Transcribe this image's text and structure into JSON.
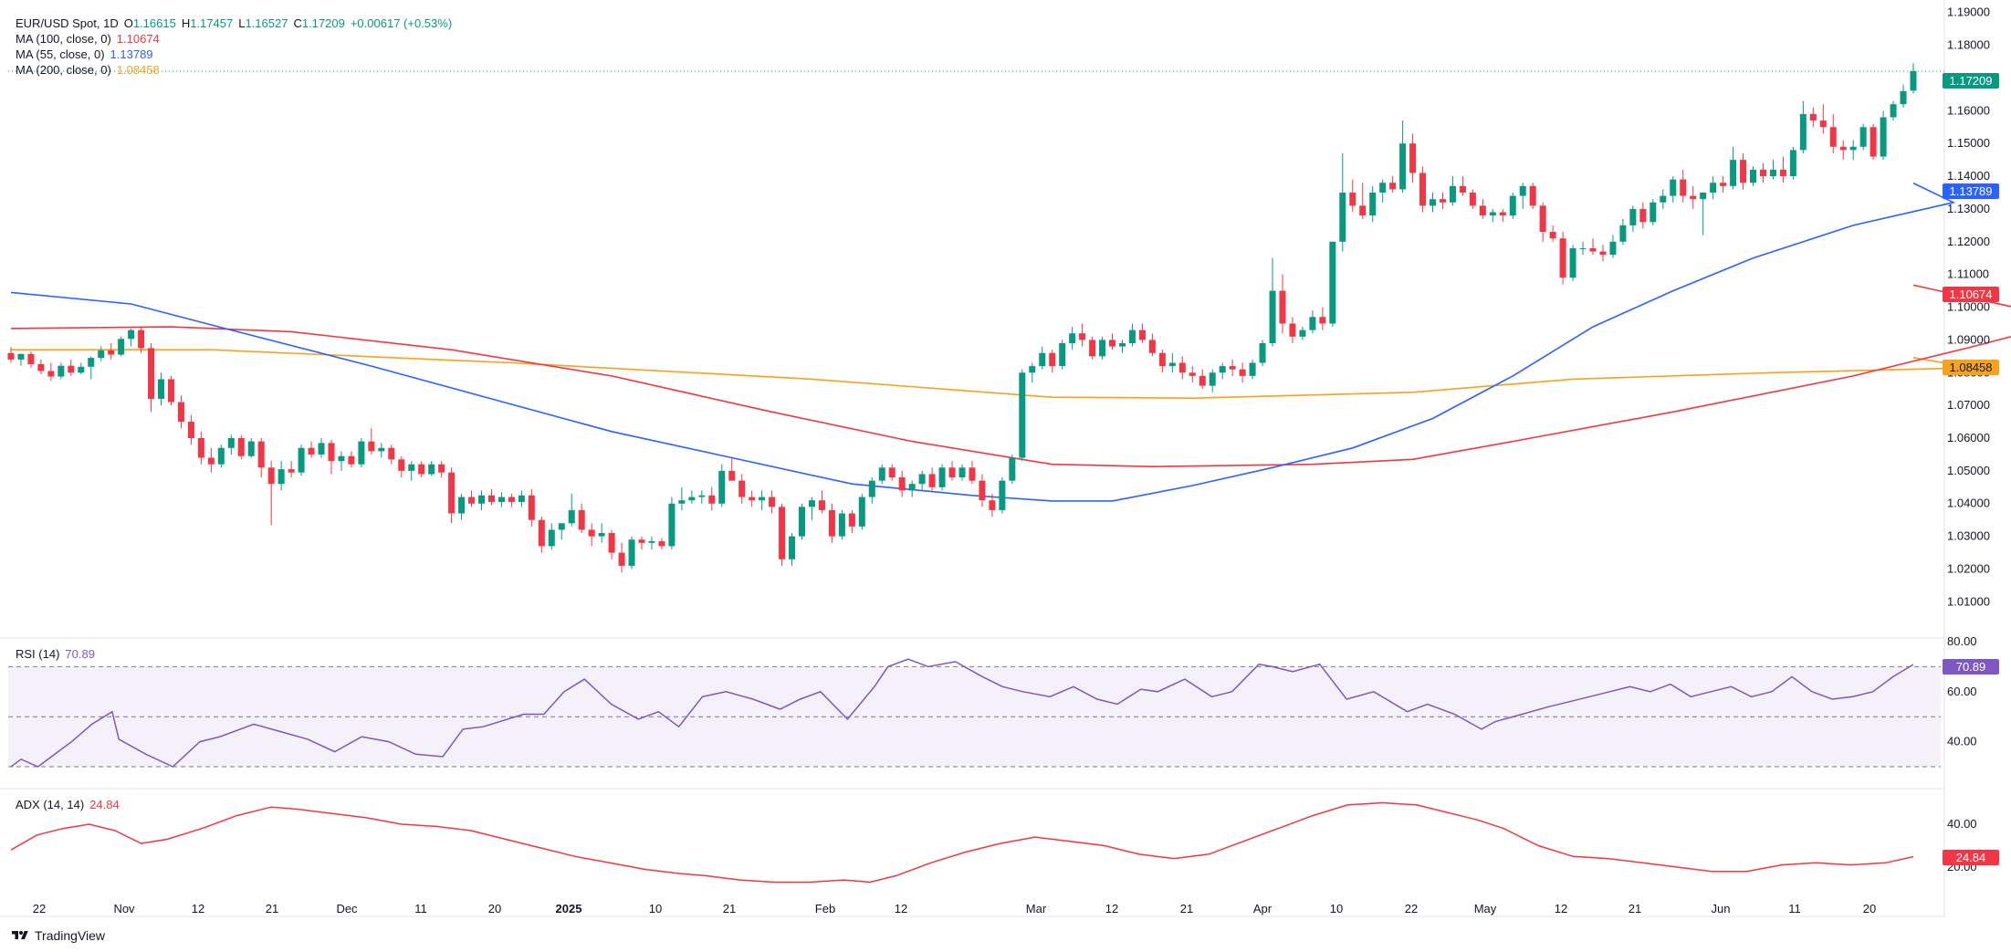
{
  "legend": {
    "symbol": "EUR/USD Spot, 1D",
    "o_label": "O",
    "o": "1.16615",
    "h_label": "H",
    "h": "1.17457",
    "l_label": "L",
    "l": "1.16527",
    "c_label": "C",
    "c": "1.17209",
    "change": "+0.00617 (+0.53%)",
    "ma100_label": "MA (100, close, 0)",
    "ma100": "1.10674",
    "ma55_label": "MA (55, close, 0)",
    "ma55": "1.13789",
    "ma200_label": "MA (200, close, 0)",
    "ma200": "1.08458",
    "rsi_label": "RSI (14)",
    "rsi": "70.89",
    "adx_label": "ADX (14, 14)",
    "adx": "24.84"
  },
  "tags": {
    "price": "1.17209",
    "ma55": "1.13789",
    "ma100": "1.10674",
    "ma200": "1.08458",
    "rsi": "70.89",
    "adx": "24.84"
  },
  "colors": {
    "up": "#089981",
    "down": "#f23645",
    "ma55": "#2962ff",
    "ma100": "#f23645",
    "ma200": "#f7a21b",
    "rsi": "#7e57c2",
    "adx": "#f23645",
    "price_tag": "#089981"
  },
  "footer": {
    "brand": "TradingView"
  },
  "chart_data": {
    "type": "candlestick",
    "title": "EUR/USD Spot, 1D",
    "x_tick_labels": [
      "22",
      "Nov",
      "12",
      "21",
      "Dec",
      "11",
      "20",
      "2025",
      "10",
      "21",
      "Feb",
      "12",
      "Mar",
      "12",
      "21",
      "Apr",
      "10",
      "22",
      "May",
      "12",
      "21",
      "Jun",
      "11",
      "20"
    ],
    "price_axis": {
      "ticks": [
        "1.19000",
        "1.18000",
        "1.17000",
        "1.16000",
        "1.15000",
        "1.14000",
        "1.13000",
        "1.12000",
        "1.11000",
        "1.10000",
        "1.09000",
        "1.08000",
        "1.07000",
        "1.06000",
        "1.05000",
        "1.04000",
        "1.03000",
        "1.02000",
        "1.01000"
      ],
      "range": [
        0.9995,
        1.1916
      ]
    },
    "rsi_axis": {
      "ticks": [
        "80.00",
        "60.00",
        "40.00"
      ],
      "bands": [
        70,
        50,
        30
      ]
    },
    "adx_axis": {
      "ticks": [
        "40.00",
        "20.00"
      ]
    },
    "candles_ohlc": [
      [
        1.086,
        1.0878,
        1.083,
        1.084
      ],
      [
        1.084,
        1.0858,
        1.0821,
        1.0857
      ],
      [
        1.0857,
        1.0865,
        1.0815,
        1.0826
      ],
      [
        1.0826,
        1.084,
        1.0795,
        1.0805
      ],
      [
        1.0805,
        1.083,
        1.0775,
        1.0788
      ],
      [
        1.0788,
        1.083,
        1.078,
        1.0821
      ],
      [
        1.0821,
        1.084,
        1.079,
        1.08
      ],
      [
        1.08,
        1.083,
        1.0795,
        1.0818
      ],
      [
        1.0818,
        1.085,
        1.078,
        1.0845
      ],
      [
        1.0845,
        1.088,
        1.0835,
        1.0868
      ],
      [
        1.0868,
        1.089,
        1.084,
        1.0855
      ],
      [
        1.0855,
        1.091,
        1.085,
        1.0903
      ],
      [
        1.0903,
        1.0935,
        1.088,
        1.093
      ],
      [
        1.093,
        1.0937,
        1.086,
        1.0875
      ],
      [
        1.0875,
        1.089,
        1.068,
        1.072
      ],
      [
        1.072,
        1.08,
        1.07,
        1.078
      ],
      [
        1.078,
        1.079,
        1.07,
        1.071
      ],
      [
        1.071,
        1.073,
        1.063,
        1.065
      ],
      [
        1.065,
        1.067,
        1.058,
        1.06
      ],
      [
        1.06,
        1.062,
        1.052,
        1.054
      ],
      [
        1.054,
        1.057,
        1.0495,
        1.052
      ],
      [
        1.052,
        1.058,
        1.051,
        1.057
      ],
      [
        1.057,
        1.061,
        1.055,
        1.06
      ],
      [
        1.06,
        1.061,
        1.0535,
        1.0545
      ],
      [
        1.0545,
        1.06,
        1.054,
        1.059
      ],
      [
        1.059,
        1.06,
        1.048,
        1.051
      ],
      [
        1.051,
        1.053,
        1.0335,
        1.046
      ],
      [
        1.046,
        1.053,
        1.044,
        1.0505
      ],
      [
        1.0505,
        1.053,
        1.048,
        1.0495
      ],
      [
        1.0495,
        1.058,
        1.0485,
        1.057
      ],
      [
        1.057,
        1.059,
        1.054,
        1.055
      ],
      [
        1.055,
        1.06,
        1.054,
        1.0585
      ],
      [
        1.0585,
        1.0595,
        1.049,
        1.053
      ],
      [
        1.053,
        1.056,
        1.05,
        1.0545
      ],
      [
        1.0545,
        1.056,
        1.051,
        1.052
      ],
      [
        1.052,
        1.06,
        1.051,
        1.059
      ],
      [
        1.059,
        1.063,
        1.055,
        1.056
      ],
      [
        1.056,
        1.0585,
        1.054,
        1.057
      ],
      [
        1.057,
        1.058,
        1.052,
        1.0535
      ],
      [
        1.0535,
        1.0545,
        1.048,
        1.05
      ],
      [
        1.05,
        1.053,
        1.047,
        1.052
      ],
      [
        1.052,
        1.053,
        1.048,
        1.049
      ],
      [
        1.049,
        1.053,
        1.0485,
        1.052
      ],
      [
        1.052,
        1.053,
        1.048,
        1.0495
      ],
      [
        1.0495,
        1.051,
        1.034,
        1.037
      ],
      [
        1.037,
        1.043,
        1.035,
        1.042
      ],
      [
        1.042,
        1.044,
        1.039,
        1.04
      ],
      [
        1.04,
        1.044,
        1.038,
        1.0425
      ],
      [
        1.0425,
        1.0445,
        1.0395,
        1.0405
      ],
      [
        1.0405,
        1.0435,
        1.039,
        1.042
      ],
      [
        1.042,
        1.043,
        1.039,
        1.0405
      ],
      [
        1.0405,
        1.044,
        1.039,
        1.0425
      ],
      [
        1.0425,
        1.0445,
        1.033,
        1.035
      ],
      [
        1.035,
        1.036,
        1.025,
        1.027
      ],
      [
        1.027,
        1.034,
        1.026,
        1.032
      ],
      [
        1.032,
        1.034,
        1.029,
        1.034
      ],
      [
        1.034,
        1.043,
        1.033,
        1.038
      ],
      [
        1.038,
        1.04,
        1.031,
        1.032
      ],
      [
        1.032,
        1.034,
        1.027,
        1.03
      ],
      [
        1.03,
        1.034,
        1.028,
        1.031
      ],
      [
        1.031,
        1.032,
        1.023,
        1.025
      ],
      [
        1.025,
        1.028,
        1.019,
        1.021
      ],
      [
        1.021,
        1.03,
        1.02,
        1.029
      ],
      [
        1.029,
        1.03,
        1.026,
        1.028
      ],
      [
        1.028,
        1.03,
        1.026,
        1.0285
      ],
      [
        1.0285,
        1.0295,
        1.026,
        1.027
      ],
      [
        1.027,
        1.042,
        1.026,
        1.04
      ],
      [
        1.04,
        1.045,
        1.038,
        1.041
      ],
      [
        1.041,
        1.044,
        1.04,
        1.042
      ],
      [
        1.042,
        1.044,
        1.04,
        1.0425
      ],
      [
        1.0425,
        1.045,
        1.038,
        1.04
      ],
      [
        1.04,
        1.052,
        1.039,
        1.05
      ],
      [
        1.05,
        1.054,
        1.048,
        1.047
      ],
      [
        1.047,
        1.049,
        1.04,
        1.042
      ],
      [
        1.042,
        1.044,
        1.039,
        1.041
      ],
      [
        1.041,
        1.044,
        1.038,
        1.042
      ],
      [
        1.042,
        1.044,
        1.037,
        1.039
      ],
      [
        1.039,
        1.04,
        1.021,
        1.023
      ],
      [
        1.023,
        1.031,
        1.021,
        1.03
      ],
      [
        1.03,
        1.04,
        1.029,
        1.039
      ],
      [
        1.039,
        1.042,
        1.035,
        1.041
      ],
      [
        1.041,
        1.044,
        1.037,
        1.038
      ],
      [
        1.038,
        1.04,
        1.028,
        1.03
      ],
      [
        1.03,
        1.038,
        1.029,
        1.037
      ],
      [
        1.037,
        1.038,
        1.031,
        1.033
      ],
      [
        1.033,
        1.043,
        1.032,
        1.042
      ],
      [
        1.042,
        1.048,
        1.04,
        1.047
      ],
      [
        1.047,
        1.052,
        1.046,
        1.051
      ],
      [
        1.051,
        1.052,
        1.047,
        1.048
      ],
      [
        1.048,
        1.05,
        1.042,
        1.044
      ],
      [
        1.044,
        1.047,
        1.042,
        1.046
      ],
      [
        1.046,
        1.05,
        1.044,
        1.049
      ],
      [
        1.049,
        1.051,
        1.044,
        1.045
      ],
      [
        1.045,
        1.052,
        1.044,
        1.051
      ],
      [
        1.051,
        1.053,
        1.047,
        1.048
      ],
      [
        1.048,
        1.052,
        1.047,
        1.051
      ],
      [
        1.051,
        1.053,
        1.046,
        1.047
      ],
      [
        1.047,
        1.049,
        1.039,
        1.041
      ],
      [
        1.041,
        1.043,
        1.036,
        1.038
      ],
      [
        1.038,
        1.048,
        1.037,
        1.047
      ],
      [
        1.047,
        1.055,
        1.046,
        1.054
      ],
      [
        1.054,
        1.081,
        1.053,
        1.08
      ],
      [
        1.08,
        1.083,
        1.077,
        1.082
      ],
      [
        1.082,
        1.088,
        1.081,
        1.086
      ],
      [
        1.086,
        1.087,
        1.08,
        1.082
      ],
      [
        1.082,
        1.09,
        1.081,
        1.089
      ],
      [
        1.089,
        1.094,
        1.087,
        1.092
      ],
      [
        1.092,
        1.095,
        1.088,
        1.09
      ],
      [
        1.09,
        1.091,
        1.084,
        1.085
      ],
      [
        1.085,
        1.091,
        1.084,
        1.09
      ],
      [
        1.09,
        1.092,
        1.087,
        1.088
      ],
      [
        1.088,
        1.09,
        1.086,
        1.089
      ],
      [
        1.089,
        1.095,
        1.088,
        1.093
      ],
      [
        1.093,
        1.095,
        1.089,
        1.09
      ],
      [
        1.09,
        1.092,
        1.085,
        1.086
      ],
      [
        1.086,
        1.087,
        1.08,
        1.082
      ],
      [
        1.082,
        1.086,
        1.08,
        1.083
      ],
      [
        1.083,
        1.085,
        1.078,
        1.08
      ],
      [
        1.08,
        1.082,
        1.077,
        1.079
      ],
      [
        1.079,
        1.081,
        1.075,
        1.076
      ],
      [
        1.076,
        1.081,
        1.074,
        1.08
      ],
      [
        1.08,
        1.083,
        1.078,
        1.082
      ],
      [
        1.082,
        1.084,
        1.079,
        1.081
      ],
      [
        1.081,
        1.083,
        1.077,
        1.079
      ],
      [
        1.079,
        1.084,
        1.078,
        1.083
      ],
      [
        1.083,
        1.09,
        1.082,
        1.089
      ],
      [
        1.089,
        1.115,
        1.088,
        1.105
      ],
      [
        1.105,
        1.11,
        1.092,
        1.095
      ],
      [
        1.095,
        1.097,
        1.089,
        1.091
      ],
      [
        1.091,
        1.094,
        1.09,
        1.093
      ],
      [
        1.093,
        1.099,
        1.092,
        1.097
      ],
      [
        1.097,
        1.1,
        1.093,
        1.095
      ],
      [
        1.095,
        1.12,
        1.094,
        1.12
      ],
      [
        1.12,
        1.147,
        1.117,
        1.135
      ],
      [
        1.135,
        1.139,
        1.129,
        1.131
      ],
      [
        1.131,
        1.138,
        1.127,
        1.128
      ],
      [
        1.128,
        1.137,
        1.126,
        1.135
      ],
      [
        1.135,
        1.139,
        1.132,
        1.138
      ],
      [
        1.138,
        1.14,
        1.135,
        1.136
      ],
      [
        1.136,
        1.157,
        1.135,
        1.15
      ],
      [
        1.15,
        1.153,
        1.138,
        1.141
      ],
      [
        1.141,
        1.143,
        1.129,
        1.131
      ],
      [
        1.131,
        1.135,
        1.129,
        1.133
      ],
      [
        1.133,
        1.135,
        1.13,
        1.132
      ],
      [
        1.132,
        1.14,
        1.131,
        1.137
      ],
      [
        1.137,
        1.14,
        1.134,
        1.135
      ],
      [
        1.135,
        1.136,
        1.13,
        1.131
      ],
      [
        1.131,
        1.133,
        1.127,
        1.128
      ],
      [
        1.128,
        1.13,
        1.126,
        1.129
      ],
      [
        1.129,
        1.13,
        1.126,
        1.128
      ],
      [
        1.128,
        1.135,
        1.127,
        1.134
      ],
      [
        1.134,
        1.138,
        1.13,
        1.137
      ],
      [
        1.137,
        1.138,
        1.13,
        1.131
      ],
      [
        1.131,
        1.132,
        1.12,
        1.123
      ],
      [
        1.123,
        1.125,
        1.12,
        1.121
      ],
      [
        1.121,
        1.123,
        1.107,
        1.109
      ],
      [
        1.109,
        1.119,
        1.108,
        1.118
      ],
      [
        1.118,
        1.12,
        1.116,
        1.118
      ],
      [
        1.118,
        1.121,
        1.116,
        1.117
      ],
      [
        1.117,
        1.119,
        1.114,
        1.116
      ],
      [
        1.116,
        1.122,
        1.115,
        1.12
      ],
      [
        1.12,
        1.127,
        1.119,
        1.125
      ],
      [
        1.125,
        1.131,
        1.123,
        1.13
      ],
      [
        1.13,
        1.132,
        1.124,
        1.126
      ],
      [
        1.126,
        1.133,
        1.125,
        1.132
      ],
      [
        1.132,
        1.136,
        1.13,
        1.134
      ],
      [
        1.134,
        1.14,
        1.132,
        1.139
      ],
      [
        1.139,
        1.142,
        1.132,
        1.134
      ],
      [
        1.134,
        1.137,
        1.13,
        1.133
      ],
      [
        1.133,
        1.135,
        1.122,
        1.135
      ],
      [
        1.135,
        1.14,
        1.133,
        1.138
      ],
      [
        1.138,
        1.14,
        1.135,
        1.137
      ],
      [
        1.137,
        1.149,
        1.136,
        1.145
      ],
      [
        1.145,
        1.147,
        1.136,
        1.138
      ],
      [
        1.138,
        1.143,
        1.137,
        1.142
      ],
      [
        1.142,
        1.144,
        1.138,
        1.14
      ],
      [
        1.14,
        1.145,
        1.139,
        1.142
      ],
      [
        1.142,
        1.146,
        1.138,
        1.14
      ],
      [
        1.14,
        1.149,
        1.139,
        1.148
      ],
      [
        1.148,
        1.163,
        1.147,
        1.159
      ],
      [
        1.159,
        1.161,
        1.155,
        1.157
      ],
      [
        1.157,
        1.162,
        1.153,
        1.155
      ],
      [
        1.155,
        1.159,
        1.147,
        1.149
      ],
      [
        1.149,
        1.151,
        1.145,
        1.148
      ],
      [
        1.148,
        1.151,
        1.145,
        1.149
      ],
      [
        1.149,
        1.156,
        1.148,
        1.155
      ],
      [
        1.155,
        1.156,
        1.145,
        1.146
      ],
      [
        1.146,
        1.16,
        1.145,
        1.158
      ],
      [
        1.158,
        1.163,
        1.157,
        1.162
      ],
      [
        1.162,
        1.168,
        1.161,
        1.166
      ],
      [
        1.16615,
        1.17457,
        1.16527,
        1.17209
      ]
    ],
    "ma_series": [
      {
        "name": "MA (100, close, 0)",
        "color": "#f23645",
        "last": 1.10674
      },
      {
        "name": "MA (55, close, 0)",
        "color": "#2962ff",
        "last": 1.13789
      },
      {
        "name": "MA (200, close, 0)",
        "color": "#f7a21b",
        "last": 1.08458
      }
    ],
    "rsi": {
      "name": "RSI (14)",
      "last": 70.89
    },
    "adx": {
      "name": "ADX (14, 14)",
      "last": 24.84
    }
  }
}
